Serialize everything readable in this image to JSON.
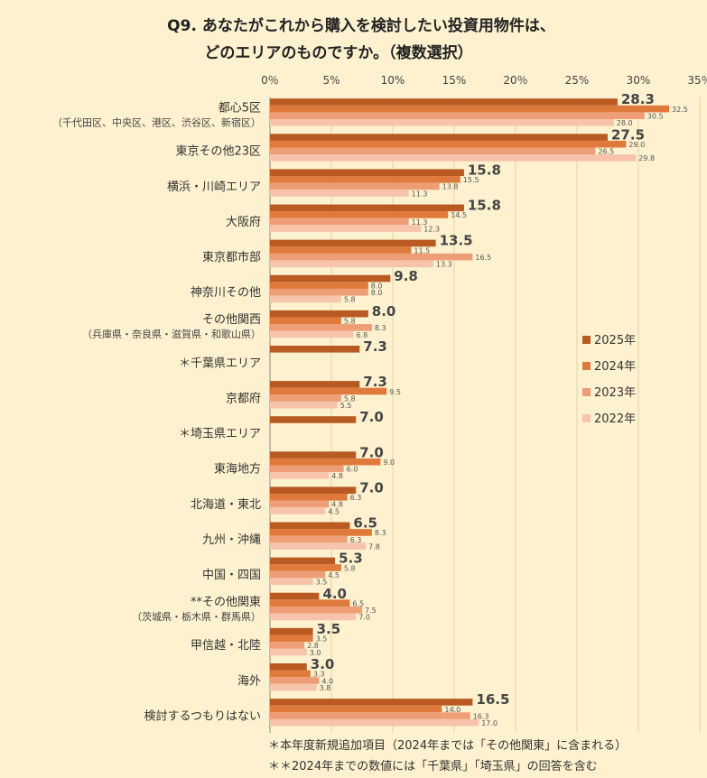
{
  "chart_data": {
    "type": "bar",
    "orientation": "horizontal",
    "title": [
      "Q9. あなたがこれから購入を検討したい投資用物件は、",
      "どのエリアのものですか。（複数選択）"
    ],
    "xlim": [
      0,
      35
    ],
    "ticks": [
      0,
      5,
      10,
      15,
      20,
      25,
      30,
      35
    ],
    "tick_labels": [
      "0％",
      "5%",
      "10%",
      "15%",
      "20％",
      "25%",
      "30%",
      "35％"
    ],
    "legend_position": "right",
    "series": [
      {
        "name": "2025年",
        "color": "#b85a22"
      },
      {
        "name": "2024年",
        "color": "#e07a3c"
      },
      {
        "name": "2023年",
        "color": "#ee9e76"
      },
      {
        "name": "2022年",
        "color": "#f7c4ab"
      }
    ],
    "categories": [
      {
        "label": "都心5区",
        "sub": "（千代田区、中央区、港区、渋谷区、新宿区）",
        "values": [
          28.3,
          32.5,
          30.5,
          28.0
        ]
      },
      {
        "label": "東京その他23区",
        "sub": "",
        "values": [
          27.5,
          29.0,
          26.5,
          29.8
        ]
      },
      {
        "label": "横浜・川崎エリア",
        "sub": "",
        "values": [
          15.8,
          15.5,
          13.8,
          11.3
        ]
      },
      {
        "label": "大阪府",
        "sub": "",
        "values": [
          15.8,
          14.5,
          11.3,
          12.3
        ]
      },
      {
        "label": "東京都市部",
        "sub": "",
        "values": [
          13.5,
          11.5,
          16.5,
          13.3
        ]
      },
      {
        "label": "神奈川その他",
        "sub": "",
        "values": [
          9.8,
          8.0,
          8.0,
          5.8
        ]
      },
      {
        "label": "その他関西",
        "sub": "（兵庫県・奈良県・滋賀県・和歌山県）",
        "values": [
          8.0,
          5.8,
          8.3,
          6.8
        ]
      },
      {
        "label": "＊千葉県エリア",
        "sub": "",
        "values": [
          7.3,
          null,
          null,
          null
        ]
      },
      {
        "label": "京都府",
        "sub": "",
        "values": [
          7.3,
          9.5,
          5.8,
          5.5
        ]
      },
      {
        "label": "＊埼玉県エリア",
        "sub": "",
        "values": [
          7.0,
          null,
          null,
          null
        ]
      },
      {
        "label": "東海地方",
        "sub": "",
        "values": [
          7.0,
          9.0,
          6.0,
          4.8
        ]
      },
      {
        "label": "北海道・東北",
        "sub": "",
        "values": [
          7.0,
          6.3,
          4.8,
          4.5
        ]
      },
      {
        "label": "九州・沖縄",
        "sub": "",
        "values": [
          6.5,
          8.3,
          6.3,
          7.8
        ]
      },
      {
        "label": "中国・四国",
        "sub": "",
        "values": [
          5.3,
          5.8,
          4.5,
          3.5
        ]
      },
      {
        "label": "**その他関東",
        "sub": "（茨城県・栃木県・群馬県）",
        "values": [
          4.0,
          6.5,
          7.5,
          7.0
        ]
      },
      {
        "label": "甲信越・北陸",
        "sub": "",
        "values": [
          3.5,
          3.5,
          2.8,
          3.0
        ]
      },
      {
        "label": "海外",
        "sub": "",
        "values": [
          3.0,
          3.3,
          4.0,
          3.8
        ]
      },
      {
        "label": "検討するつもりはない",
        "sub": "",
        "values": [
          16.5,
          14.0,
          16.3,
          17.0
        ]
      }
    ],
    "notes": [
      "＊本年度新規追加項目（2024年までは「その他関東」に含まれる）",
      "＊＊2024年までの数値には「千葉県」「埼玉県」の回答を含む"
    ]
  }
}
